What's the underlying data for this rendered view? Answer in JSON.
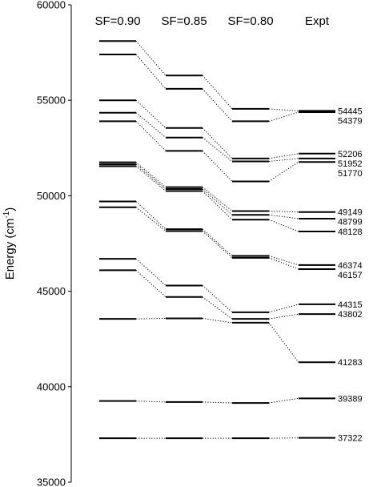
{
  "chart_data": {
    "type": "level-diagram",
    "ylabel": "Energy (cm",
    "ylabel_sup": "-1",
    "ylabel_close": ")",
    "ylim": [
      35000,
      60000
    ],
    "yticks": [
      35000,
      40000,
      45000,
      50000,
      55000,
      60000
    ],
    "ytick_labels": [
      "35000",
      "40000",
      "45000",
      "50000",
      "55000",
      "60000"
    ],
    "columns": [
      {
        "label": "SF=0.90",
        "levels": [
          58100,
          57400,
          55000,
          54350,
          53900,
          51750,
          51650,
          51550,
          49700,
          49400,
          46700,
          46100,
          43550,
          39250,
          37300
        ]
      },
      {
        "label": "SF=0.85",
        "levels": [
          56300,
          55600,
          53550,
          53050,
          52350,
          50450,
          50350,
          50250,
          48250,
          48150,
          45300,
          44700,
          43580,
          39200,
          37300
        ]
      },
      {
        "label": "SF=0.80",
        "levels": [
          54550,
          53900,
          51950,
          51800,
          50750,
          49200,
          49000,
          48750,
          46850,
          46750,
          43900,
          43550,
          43350,
          39150,
          37300
        ]
      },
      {
        "label": "Expt",
        "levels": [
          54445,
          54379,
          52206,
          51952,
          51770,
          49149,
          48799,
          48128,
          46374,
          46157,
          44315,
          43802,
          41283,
          39389,
          37322
        ]
      }
    ],
    "connections": [
      [
        [
          0,
          0
        ],
        [
          1,
          0
        ],
        [
          2,
          0
        ],
        [
          3,
          0
        ]
      ],
      [
        [
          0,
          1
        ],
        [
          1,
          1
        ],
        [
          2,
          1
        ],
        [
          3,
          1
        ]
      ],
      [
        [
          0,
          2
        ],
        [
          1,
          2
        ],
        [
          2,
          2
        ],
        [
          3,
          2
        ]
      ],
      [
        [
          0,
          3
        ],
        [
          1,
          3
        ],
        [
          2,
          3
        ],
        [
          3,
          3
        ]
      ],
      [
        [
          0,
          4
        ],
        [
          1,
          4
        ],
        [
          2,
          4
        ],
        [
          3,
          4
        ]
      ],
      [
        [
          0,
          5
        ],
        [
          1,
          5
        ],
        [
          2,
          5
        ],
        [
          3,
          5
        ]
      ],
      [
        [
          0,
          6
        ],
        [
          1,
          6
        ],
        [
          2,
          6
        ],
        [
          3,
          6
        ]
      ],
      [
        [
          0,
          7
        ],
        [
          1,
          7
        ],
        [
          2,
          7
        ],
        [
          3,
          7
        ]
      ],
      [
        [
          0,
          8
        ],
        [
          1,
          8
        ],
        [
          2,
          8
        ],
        [
          3,
          8
        ]
      ],
      [
        [
          0,
          9
        ],
        [
          1,
          9
        ],
        [
          2,
          9
        ],
        [
          3,
          9
        ]
      ],
      [
        [
          0,
          10
        ],
        [
          1,
          10
        ],
        [
          2,
          10
        ],
        [
          3,
          10
        ]
      ],
      [
        [
          0,
          11
        ],
        [
          1,
          11
        ],
        [
          2,
          11
        ],
        [
          3,
          11
        ]
      ],
      [
        [
          0,
          12
        ],
        [
          1,
          12
        ],
        [
          2,
          12
        ],
        [
          3,
          12
        ]
      ],
      [
        [
          0,
          13
        ],
        [
          1,
          13
        ],
        [
          2,
          13
        ],
        [
          3,
          13
        ]
      ],
      [
        [
          0,
          14
        ],
        [
          1,
          14
        ],
        [
          2,
          14
        ],
        [
          3,
          14
        ]
      ]
    ],
    "expt_labels": [
      "54445",
      "54379",
      "52206",
      "51952",
      "51770",
      "49149",
      "48799",
      "48128",
      "46374",
      "46157",
      "44315",
      "43802",
      "41283",
      "39389",
      "37322"
    ]
  }
}
